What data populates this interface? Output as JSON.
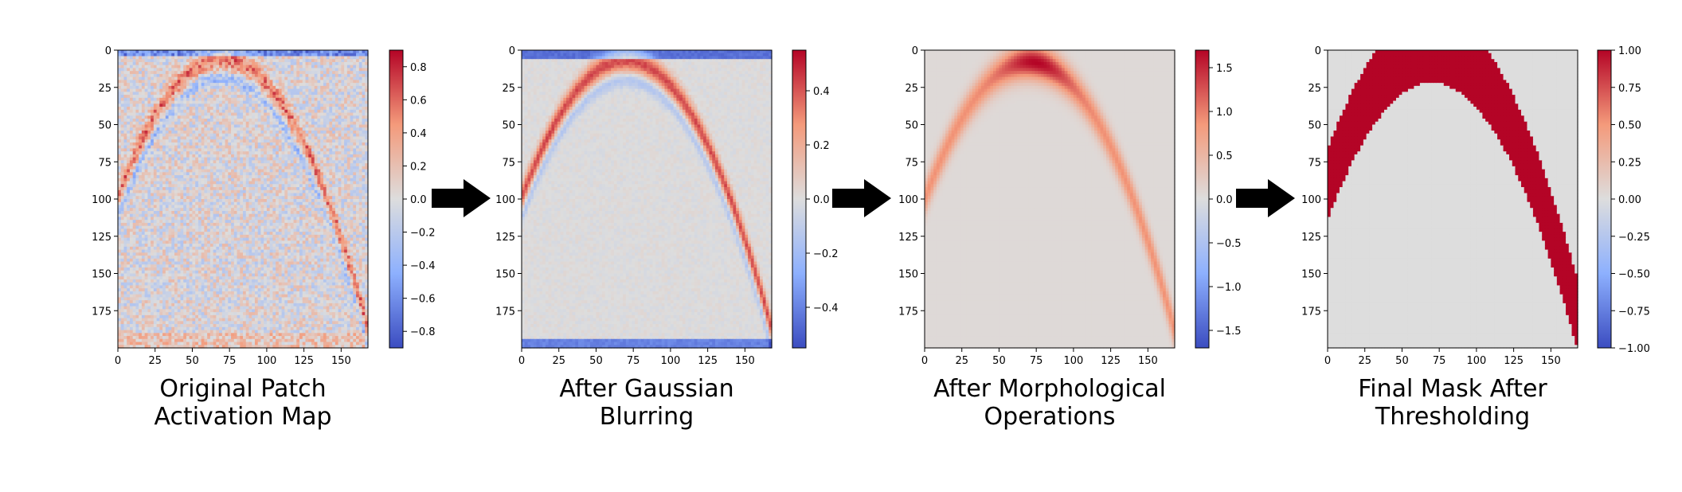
{
  "chart_data": [
    {
      "type": "heatmap",
      "title": [
        "Original Patch",
        "Activation Map"
      ],
      "xlim": [
        0,
        168
      ],
      "ylim": [
        200,
        0
      ],
      "xticks": [
        "0",
        "25",
        "50",
        "75",
        "100",
        "125",
        "150"
      ],
      "yticks": [
        "0",
        "25",
        "50",
        "75",
        "100",
        "125",
        "150",
        "175"
      ],
      "colormap": "coolwarm",
      "color_range": [
        -0.9,
        0.9
      ],
      "colorbar_ticks": [
        "0.8",
        "0.6",
        "0.4",
        "0.2",
        "0.0",
        "−0.2",
        "−0.4",
        "−0.6",
        "−0.8"
      ],
      "pattern": "noisy arch band, positive outer edge and negative inner edge, peak near x=70, y=10"
    },
    {
      "type": "heatmap",
      "title": [
        "After Gaussian",
        "Blurring"
      ],
      "xlim": [
        0,
        168
      ],
      "ylim": [
        200,
        0
      ],
      "xticks": [
        "0",
        "25",
        "50",
        "75",
        "100",
        "125",
        "150"
      ],
      "yticks": [
        "0",
        "25",
        "50",
        "75",
        "100",
        "125",
        "150",
        "175"
      ],
      "colormap": "coolwarm",
      "color_range": [
        -0.55,
        0.55
      ],
      "colorbar_ticks": [
        "0.4",
        "0.2",
        "0.0",
        "−0.2",
        "−0.4"
      ],
      "pattern": "smoothed arch band with negative inner edge"
    },
    {
      "type": "heatmap",
      "title": [
        "After Morphological",
        "Operations"
      ],
      "xlim": [
        0,
        168
      ],
      "ylim": [
        200,
        0
      ],
      "xticks": [
        "0",
        "25",
        "50",
        "75",
        "100",
        "125",
        "150"
      ],
      "yticks": [
        "0",
        "25",
        "50",
        "75",
        "100",
        "125",
        "150",
        "175"
      ],
      "colormap": "coolwarm",
      "color_range": [
        -1.7,
        1.7
      ],
      "colorbar_ticks": [
        "1.5",
        "1.0",
        "0.5",
        "0.0",
        "−0.5",
        "−1.0",
        "−1.5"
      ],
      "pattern": "positive arch band only, peak near x=75, y=15"
    },
    {
      "type": "heatmap",
      "title": [
        "Final Mask After",
        "Thresholding"
      ],
      "xlim": [
        0,
        168
      ],
      "ylim": [
        200,
        0
      ],
      "xticks": [
        "0",
        "25",
        "50",
        "75",
        "100",
        "125",
        "150"
      ],
      "yticks": [
        "0",
        "25",
        "50",
        "75",
        "100",
        "125",
        "150",
        "175"
      ],
      "colormap": "coolwarm",
      "color_range": [
        -1.0,
        1.0
      ],
      "colorbar_ticks": [
        "1.00",
        "0.75",
        "0.50",
        "0.25",
        "0.00",
        "−0.25",
        "−0.50",
        "−0.75",
        "−1.00"
      ],
      "pattern": "binary arch mask, 1 inside band, 0 elsewhere"
    }
  ],
  "colors": {
    "arrow": "#000000",
    "coolwarm_low": "#3b4cc0",
    "coolwarm_mid": "#dddddd",
    "coolwarm_high": "#b40426"
  }
}
